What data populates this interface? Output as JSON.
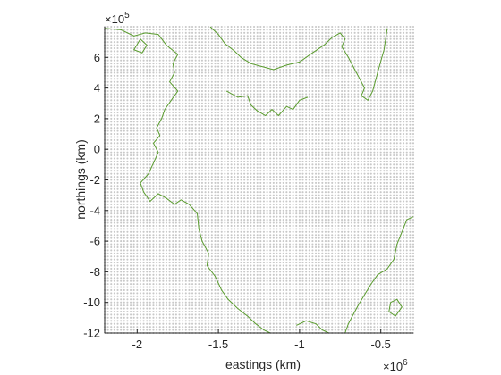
{
  "chart_data": {
    "type": "scatter",
    "title": "",
    "xlabel": "eastings (km)",
    "ylabel": "northings (km)",
    "x_exponent_label": "×10",
    "x_exponent": "6",
    "y_exponent_label": "×10",
    "y_exponent": "5",
    "xlim": [
      -2.2,
      -0.3
    ],
    "ylim": [
      -12,
      8
    ],
    "x_ticks": [
      -2,
      -1.5,
      -1,
      -0.5
    ],
    "x_tick_labels": [
      "-2",
      "-1.5",
      "-1",
      "-0.5"
    ],
    "y_ticks": [
      -12,
      -10,
      -8,
      -6,
      -4,
      -2,
      0,
      2,
      4,
      6
    ],
    "y_tick_labels": [
      "-12",
      "-10",
      "-8",
      "-6",
      "-4",
      "-2",
      "0",
      "2",
      "4",
      "6"
    ],
    "grid": false,
    "colors": {
      "points": "#c8c8c8",
      "coastline": "#5a9c2e",
      "axes": "#262626"
    },
    "series": [
      {
        "kind": "points",
        "x_step": 0.02,
        "y_step": 0.2
      },
      {
        "kind": "coastline",
        "paths": [
          [
            [
              -2.2,
              7.9
            ],
            [
              -2.1,
              7.8
            ],
            [
              -2.02,
              7.4
            ],
            [
              -1.95,
              7.6
            ],
            [
              -1.87,
              7.5
            ],
            [
              -1.82,
              6.8
            ],
            [
              -1.75,
              6.2
            ],
            [
              -1.78,
              5.6
            ],
            [
              -1.77,
              5.0
            ],
            [
              -1.8,
              4.4
            ],
            [
              -1.75,
              3.8
            ],
            [
              -1.79,
              3.2
            ],
            [
              -1.83,
              2.6
            ],
            [
              -1.85,
              2.0
            ],
            [
              -1.88,
              1.4
            ],
            [
              -1.86,
              0.9
            ],
            [
              -1.9,
              0.4
            ],
            [
              -1.87,
              -0.2
            ],
            [
              -1.9,
              -0.9
            ],
            [
              -1.93,
              -1.6
            ],
            [
              -1.98,
              -2.2
            ],
            [
              -1.96,
              -2.8
            ],
            [
              -1.92,
              -3.4
            ],
            [
              -1.87,
              -2.9
            ],
            [
              -1.82,
              -3.2
            ],
            [
              -1.77,
              -3.6
            ],
            [
              -1.73,
              -3.3
            ],
            [
              -1.68,
              -3.6
            ],
            [
              -1.63,
              -4.2
            ],
            [
              -1.62,
              -5.2
            ],
            [
              -1.6,
              -6.0
            ],
            [
              -1.56,
              -6.8
            ],
            [
              -1.57,
              -7.6
            ],
            [
              -1.52,
              -8.3
            ],
            [
              -1.48,
              -9.2
            ],
            [
              -1.44,
              -9.8
            ],
            [
              -1.38,
              -10.4
            ],
            [
              -1.32,
              -10.9
            ],
            [
              -1.27,
              -11.4
            ],
            [
              -1.22,
              -11.8
            ],
            [
              -1.18,
              -12
            ]
          ],
          [
            [
              -1.55,
              8.0
            ],
            [
              -1.5,
              7.5
            ],
            [
              -1.46,
              6.9
            ],
            [
              -1.4,
              6.4
            ],
            [
              -1.36,
              6.0
            ],
            [
              -1.3,
              5.6
            ],
            [
              -1.23,
              5.4
            ],
            [
              -1.16,
              5.2
            ],
            [
              -1.08,
              5.5
            ],
            [
              -1.0,
              5.7
            ],
            [
              -0.92,
              6.3
            ],
            [
              -0.85,
              6.8
            ],
            [
              -0.8,
              7.3
            ],
            [
              -0.75,
              7.6
            ],
            [
              -0.72,
              7.2
            ],
            [
              -0.74,
              6.7
            ],
            [
              -0.7,
              6.0
            ],
            [
              -0.66,
              5.2
            ],
            [
              -0.63,
              4.6
            ],
            [
              -0.6,
              4.0
            ],
            [
              -0.62,
              3.5
            ],
            [
              -0.58,
              3.2
            ],
            [
              -0.55,
              3.8
            ],
            [
              -0.52,
              5.0
            ],
            [
              -0.48,
              6.5
            ],
            [
              -0.46,
              7.9
            ]
          ],
          [
            [
              -1.45,
              3.8
            ],
            [
              -1.38,
              3.4
            ],
            [
              -1.32,
              3.5
            ],
            [
              -1.3,
              2.9
            ],
            [
              -1.26,
              2.5
            ],
            [
              -1.21,
              2.2
            ],
            [
              -1.17,
              2.6
            ],
            [
              -1.13,
              2.2
            ],
            [
              -1.08,
              2.8
            ],
            [
              -1.04,
              2.6
            ],
            [
              -1.0,
              3.2
            ],
            [
              -0.95,
              3.4
            ]
          ],
          [
            [
              -0.3,
              -4.4
            ],
            [
              -0.34,
              -4.6
            ],
            [
              -0.37,
              -5.4
            ],
            [
              -0.4,
              -6.2
            ],
            [
              -0.42,
              -7.2
            ],
            [
              -0.46,
              -7.8
            ],
            [
              -0.52,
              -8.2
            ],
            [
              -0.56,
              -8.8
            ],
            [
              -0.6,
              -9.5
            ],
            [
              -0.64,
              -10.2
            ],
            [
              -0.67,
              -10.8
            ],
            [
              -0.7,
              -11.4
            ],
            [
              -0.72,
              -12
            ]
          ],
          [
            [
              -0.44,
              -10.0
            ],
            [
              -0.4,
              -9.8
            ],
            [
              -0.37,
              -10.3
            ],
            [
              -0.41,
              -10.9
            ],
            [
              -0.45,
              -10.6
            ],
            [
              -0.44,
              -10.0
            ]
          ],
          [
            [
              -1.98,
              7.2
            ],
            [
              -1.94,
              6.8
            ],
            [
              -1.97,
              6.3
            ],
            [
              -2.02,
              6.5
            ],
            [
              -1.98,
              7.2
            ]
          ],
          [
            [
              -1.02,
              -11.5
            ],
            [
              -0.96,
              -11.2
            ],
            [
              -0.9,
              -11.4
            ],
            [
              -0.86,
              -11.8
            ],
            [
              -0.82,
              -12
            ]
          ]
        ]
      }
    ]
  }
}
